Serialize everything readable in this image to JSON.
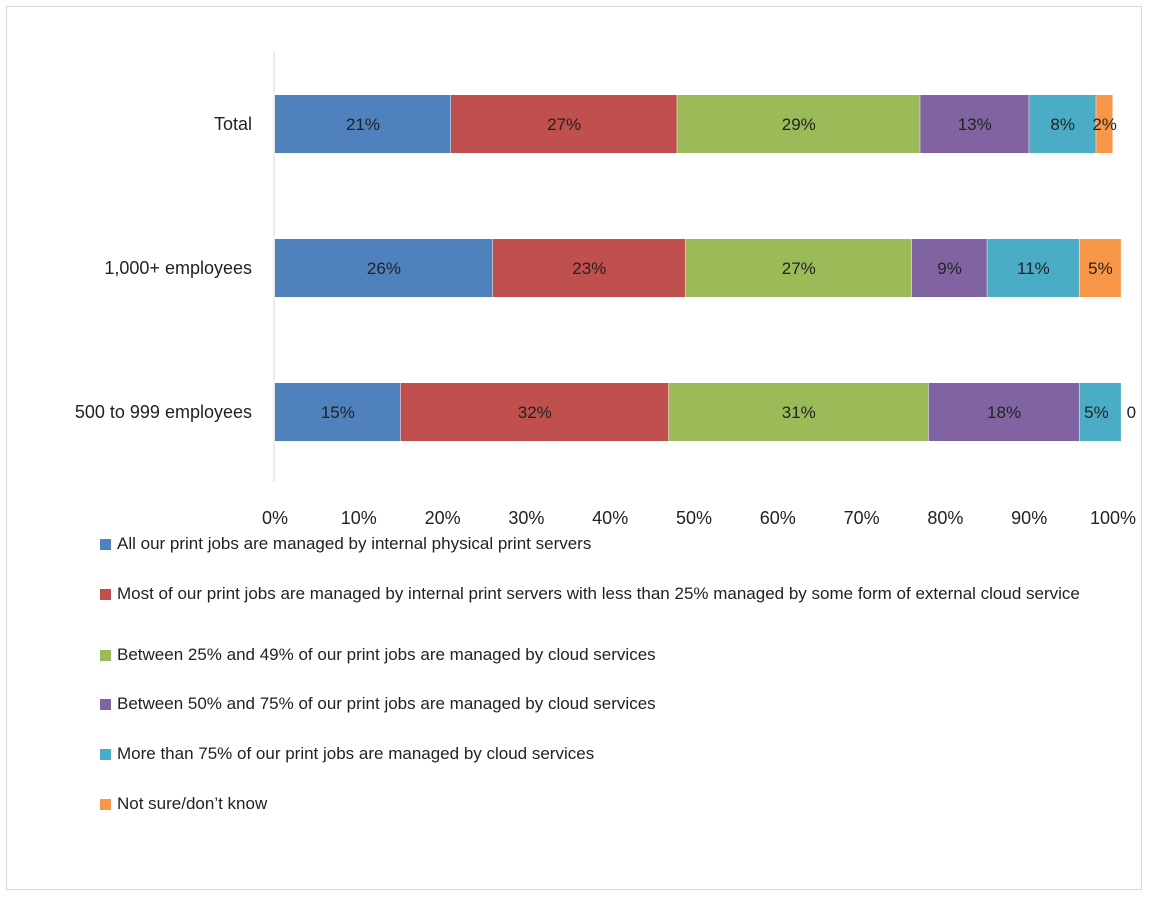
{
  "chart_data": {
    "type": "bar",
    "orientation": "horizontal",
    "stacked": true,
    "categories": [
      "Total",
      "1,000+ employees",
      "500 to 999 employees"
    ],
    "series": [
      {
        "name": "All our print jobs are managed by internal physical print servers",
        "color": "#4F81BD",
        "values": [
          21,
          26,
          15
        ],
        "labels": [
          "21%",
          "26%",
          "15%"
        ]
      },
      {
        "name": "Most of our print jobs are managed by internal print servers with less than 25% managed by some form of external cloud service",
        "color": "#C0504D",
        "values": [
          27,
          23,
          32
        ],
        "labels": [
          "27%",
          "23%",
          "32%"
        ]
      },
      {
        "name": "Between 25% and 49% of our print jobs are managed by cloud services",
        "color": "#9BBB59",
        "values": [
          29,
          27,
          31
        ],
        "labels": [
          "29%",
          "27%",
          "31%"
        ]
      },
      {
        "name": "Between 50% and 75% of our print jobs are managed by cloud services",
        "color": "#8064A2",
        "values": [
          13,
          9,
          18
        ],
        "labels": [
          "13%",
          "9%",
          "18%"
        ]
      },
      {
        "name": "More than 75% of our print jobs are managed by cloud services",
        "color": "#4BACC6",
        "values": [
          8,
          11,
          5
        ],
        "labels": [
          "8%",
          "11%",
          "5%"
        ]
      },
      {
        "name": "Not sure/don’t know",
        "color": "#F79646",
        "values": [
          2,
          5,
          0
        ],
        "labels": [
          "2%",
          "5%",
          "0"
        ]
      }
    ],
    "xlim": [
      0,
      100
    ],
    "xticks": [
      "0%",
      "10%",
      "20%",
      "30%",
      "40%",
      "50%",
      "60%",
      "70%",
      "80%",
      "90%",
      "100%"
    ],
    "grid": false,
    "legend_position": "bottom",
    "title": "",
    "xlabel": "",
    "ylabel": ""
  }
}
